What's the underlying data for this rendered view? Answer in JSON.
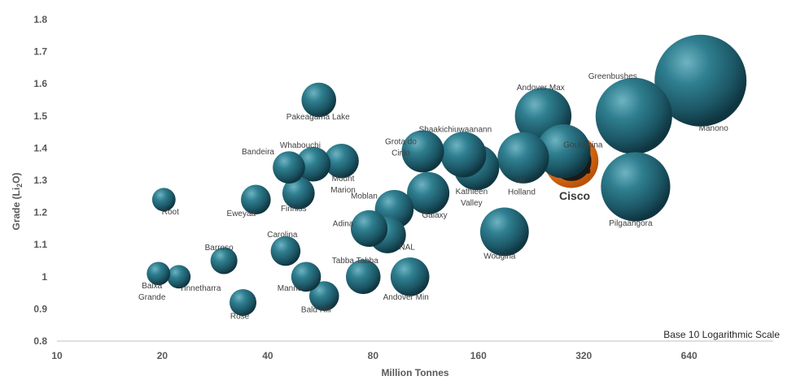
{
  "chart_data": {
    "type": "scatter",
    "xlabel": "Million Tonnes",
    "ylabel_main": "Grade (Li",
    "ylabel_sub": "2",
    "ylabel_tail": "O)",
    "scale_note": "Base 10 Logarithmic Scale",
    "x_scale": "log10",
    "xlim": [
      10,
      1000
    ],
    "ylim": [
      0.8,
      1.8
    ],
    "x_ticks": [
      "10",
      "20",
      "40",
      "80",
      "160",
      "320",
      "640"
    ],
    "x_tick_values": [
      10,
      20,
      40,
      80,
      160,
      320,
      640
    ],
    "y_ticks": [
      "0.8",
      "0.9",
      "1",
      "1.1",
      "1.2",
      "1.3",
      "1.4",
      "1.5",
      "1.6",
      "1.7",
      "1.8"
    ],
    "y_tick_values": [
      0.8,
      0.9,
      1.0,
      1.1,
      1.2,
      1.3,
      1.4,
      1.5,
      1.6,
      1.7,
      1.8
    ],
    "grid": false,
    "bubble_color": "#1f5f6e",
    "highlight_color": "#e8731f",
    "points": [
      {
        "label": "Root",
        "x": 20.2,
        "y": 1.24,
        "size": 1
      },
      {
        "label": "Baixa Grande",
        "x": 19.5,
        "y": 1.01,
        "size": 1
      },
      {
        "label": "Yinnetharra",
        "x": 22.3,
        "y": 1.0,
        "size": 1
      },
      {
        "label": "Barroso",
        "x": 30.0,
        "y": 1.05,
        "size": 1.5
      },
      {
        "label": "Rose",
        "x": 34.0,
        "y": 0.92,
        "size": 1.5
      },
      {
        "label": "Eweyaa",
        "x": 37.0,
        "y": 1.24,
        "size": 2
      },
      {
        "label": "Bandeira",
        "x": 46.0,
        "y": 1.34,
        "size": 2.5
      },
      {
        "label": "Whabouchi",
        "x": 54.0,
        "y": 1.35,
        "size": 3
      },
      {
        "label": "Finniss",
        "x": 49.0,
        "y": 1.26,
        "size": 2.5
      },
      {
        "label": "Carolina",
        "x": 45.0,
        "y": 1.08,
        "size": 2
      },
      {
        "label": "Manna",
        "x": 51.5,
        "y": 1.0,
        "size": 2
      },
      {
        "label": "Bald Hill",
        "x": 58.0,
        "y": 0.94,
        "size": 2
      },
      {
        "label": "Pakeagama Lake",
        "x": 56.0,
        "y": 1.55,
        "size": 3
      },
      {
        "label": "Mount Marion",
        "x": 65.0,
        "y": 1.36,
        "size": 3
      },
      {
        "label": "Adina",
        "x": 78.0,
        "y": 1.15,
        "size": 3.5
      },
      {
        "label": "NAL",
        "x": 88.0,
        "y": 1.13,
        "size": 3.5
      },
      {
        "label": "Tabba Tabba",
        "x": 75.0,
        "y": 1.0,
        "size": 3
      },
      {
        "label": "Moblan",
        "x": 92.0,
        "y": 1.21,
        "size": 4
      },
      {
        "label": "Grota do Cirilo",
        "x": 111.0,
        "y": 1.39,
        "size": 5
      },
      {
        "label": "Galaxy",
        "x": 115.0,
        "y": 1.26,
        "size": 5
      },
      {
        "label": "Andover Min",
        "x": 102.0,
        "y": 1.0,
        "size": 4
      },
      {
        "label": "Shaakichiuwaanann",
        "x": 145.0,
        "y": 1.38,
        "size": 6
      },
      {
        "label": "Kathleen Valley",
        "x": 158.0,
        "y": 1.34,
        "size": 6
      },
      {
        "label": "Wodgina",
        "x": 190.0,
        "y": 1.14,
        "size": 7
      },
      {
        "label": "Mt. Holland",
        "x": 215.0,
        "y": 1.37,
        "size": 8
      },
      {
        "label": "Andover Max",
        "x": 245.0,
        "y": 1.5,
        "size": 10
      },
      {
        "label": "Goulamina",
        "x": 280.0,
        "y": 1.39,
        "size": 9
      },
      {
        "label": "Cisco",
        "x": 295.0,
        "y": 1.36,
        "size": 9,
        "highlight": true
      },
      {
        "label": "Greenbushes",
        "x": 445.0,
        "y": 1.5,
        "size": 20
      },
      {
        "label": "Pilgaangora",
        "x": 450.0,
        "y": 1.28,
        "size": 16
      },
      {
        "label": "Manono",
        "x": 690.0,
        "y": 1.61,
        "size": 30
      }
    ]
  }
}
